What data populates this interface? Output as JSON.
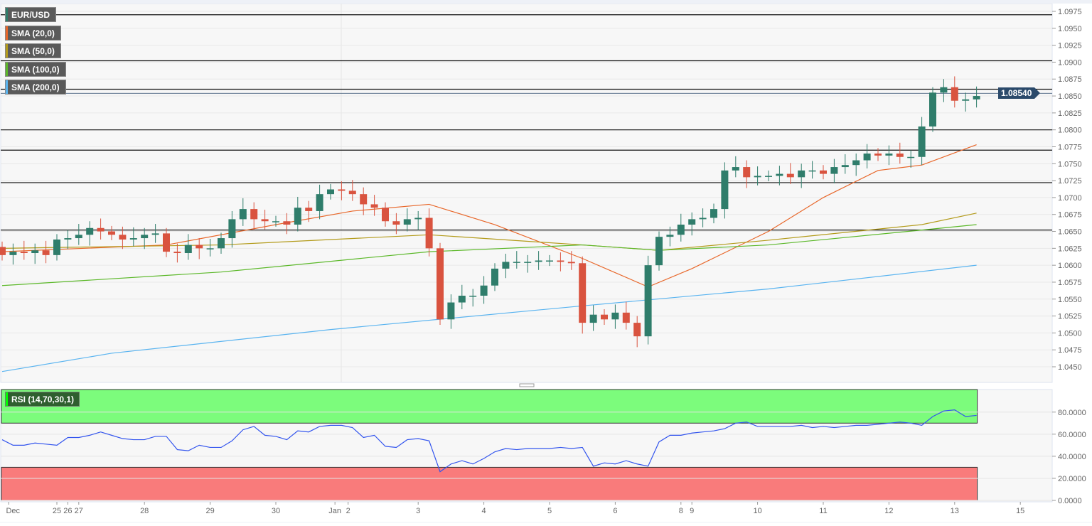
{
  "chart_data": {
    "type": "candlestick",
    "symbol": "EUR/USD",
    "current_price": "1.08540",
    "indicators": [
      {
        "name": "SMA (20,0)",
        "color": "#e8672a"
      },
      {
        "name": "SMA (50,0)",
        "color": "#b39b1b"
      },
      {
        "name": "SMA (100,0)",
        "color": "#5cb82a"
      },
      {
        "name": "SMA (200,0)",
        "color": "#5ab4f0"
      }
    ],
    "ylim": [
      1.044,
      1.0985
    ],
    "y_ticks": [
      "1.0975",
      "1.0950",
      "1.0925",
      "1.0900",
      "1.0875",
      "1.0850",
      "1.0825",
      "1.0800",
      "1.0775",
      "1.0750",
      "1.0725",
      "1.0700",
      "1.0675",
      "1.0650",
      "1.0625",
      "1.0600",
      "1.0575",
      "1.0550",
      "1.0525",
      "1.0500",
      "1.0475",
      "1.0450"
    ],
    "first_open": 1.0627,
    "closes": [
      1.0615,
      1.062,
      1.0618,
      1.0622,
      1.0615,
      1.0638,
      1.064,
      1.0645,
      1.0655,
      1.065,
      1.0645,
      1.0638,
      1.064,
      1.0645,
      1.0647,
      1.062,
      1.0618,
      1.063,
      1.0625,
      1.0625,
      1.064,
      1.0668,
      1.0683,
      1.0668,
      1.0665,
      1.0665,
      1.066,
      1.0685,
      1.068,
      1.0705,
      1.0712,
      1.071,
      1.0705,
      1.069,
      1.0685,
      1.0665,
      1.066,
      1.0668,
      1.067,
      1.0625,
      1.052,
      1.0545,
      1.0555,
      1.0555,
      1.057,
      1.0595,
      1.0605,
      1.0605,
      1.0605,
      1.0607,
      1.0607,
      1.0605,
      1.0603,
      1.0515,
      1.0527,
      1.052,
      1.053,
      1.0515,
      1.0495,
      1.06,
      1.0642,
      1.0645,
      1.066,
      1.0668,
      1.067,
      1.0683,
      1.074,
      1.0745,
      1.073,
      1.0732,
      1.0732,
      1.0735,
      1.073,
      1.074,
      1.074,
      1.0735,
      1.0745,
      1.0748,
      1.0755,
      1.0765,
      1.0762,
      1.0765,
      1.076,
      1.076,
      1.0805,
      1.0855,
      1.0863,
      1.0843,
      1.0845,
      1.085
    ],
    "sma": [
      [
        [
          0,
          1.062
        ],
        [
          15,
          1.063
        ],
        [
          25,
          1.066
        ],
        [
          32,
          1.068
        ],
        [
          39,
          1.069
        ],
        [
          45,
          1.066
        ],
        [
          53,
          1.061
        ],
        [
          59,
          1.0568
        ],
        [
          63,
          1.0595
        ],
        [
          70,
          1.065
        ],
        [
          75,
          1.07
        ],
        [
          80,
          1.074
        ],
        [
          84,
          1.0748
        ],
        [
          89,
          1.0778
        ]
      ],
      [
        [
          0,
          1.0625
        ],
        [
          20,
          1.063
        ],
        [
          39,
          1.0645
        ],
        [
          53,
          1.063
        ],
        [
          60,
          1.0622
        ],
        [
          70,
          1.0637
        ],
        [
          84,
          1.066
        ],
        [
          89,
          1.0677
        ]
      ],
      [
        [
          0,
          1.057
        ],
        [
          20,
          1.059
        ],
        [
          39,
          1.062
        ],
        [
          53,
          1.063
        ],
        [
          60,
          1.0622
        ],
        [
          70,
          1.063
        ],
        [
          84,
          1.0652
        ],
        [
          89,
          1.066
        ]
      ],
      [
        [
          0,
          1.0443
        ],
        [
          10,
          1.047
        ],
        [
          30,
          1.0505
        ],
        [
          53,
          1.054
        ],
        [
          70,
          1.0565
        ],
        [
          89,
          1.06
        ]
      ]
    ],
    "levels": [
      1.097,
      1.0902,
      1.086,
      1.08,
      1.077,
      1.0722,
      1.0652
    ],
    "rsi": {
      "label": "RSI (14,70,30,1)",
      "overbought": 70,
      "oversold": 30,
      "y_ticks": [
        "80.0000",
        "60.0000",
        "40.0000",
        "20.0000",
        "0.0000"
      ],
      "values": [
        55,
        50,
        50,
        52,
        51,
        50,
        57,
        57,
        59,
        62,
        59,
        56,
        55,
        55,
        58,
        58,
        46,
        45,
        50,
        48,
        48,
        54,
        64,
        67,
        59,
        58,
        55,
        63,
        62,
        67,
        68,
        68,
        66,
        57,
        59,
        49,
        48,
        55,
        56,
        54,
        26,
        33,
        36,
        33,
        38,
        44,
        47,
        46,
        47,
        47,
        47,
        48,
        47,
        48,
        31,
        34,
        33,
        36,
        33,
        31,
        53,
        59,
        59,
        61,
        62,
        63,
        65,
        70,
        71,
        67,
        67,
        67,
        67,
        68,
        66,
        67,
        66,
        67,
        68,
        68,
        69,
        70,
        71,
        70,
        68,
        76,
        81,
        82,
        76,
        77
      ]
    },
    "x_labels": [
      [
        "Dec",
        0.6
      ],
      [
        "25",
        5
      ],
      [
        "26",
        6
      ],
      [
        "27",
        7
      ],
      [
        "28",
        13
      ],
      [
        "29",
        19
      ],
      [
        "30",
        25
      ],
      [
        "Jan",
        30.4
      ],
      [
        "2",
        31.6
      ],
      [
        "3",
        38
      ],
      [
        "4",
        44
      ],
      [
        "5",
        50
      ],
      [
        "6",
        56
      ],
      [
        "8",
        62
      ],
      [
        "9",
        63
      ],
      [
        "10",
        69
      ],
      [
        "11",
        75
      ],
      [
        "12",
        81
      ],
      [
        "13",
        87
      ],
      [
        "15",
        93
      ]
    ],
    "colors": {
      "up": "#2f7d6b",
      "down": "#d9533f"
    }
  }
}
